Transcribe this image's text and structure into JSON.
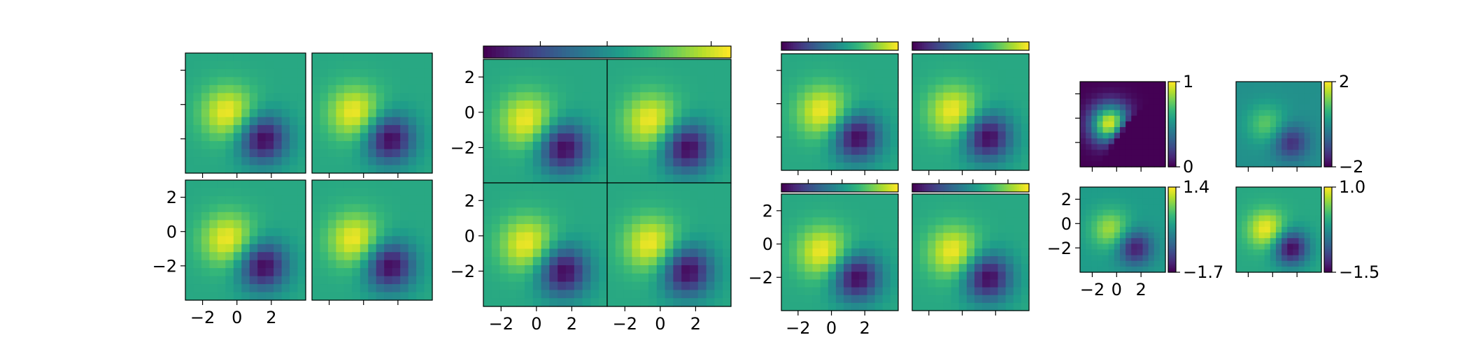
{
  "chart_data": {
    "type": "heatmap",
    "description": "Four figure panels of 2x2 image grids (ImageGrid-style). Each image is the same field: a positive bump near (-0.5,-0.5) and a negative bump near (1.5,-2), extent [-3,4]x[-4,3].",
    "colormap": "viridis",
    "field": {
      "x_extent": [
        -3,
        4
      ],
      "y_extent": [
        -4,
        3
      ],
      "bumps": [
        {
          "cx": -0.5,
          "cy": -0.5,
          "sigma": 1.1,
          "amp": 1.0
        },
        {
          "cx": 1.5,
          "cy": -2.0,
          "sigma": 1.0,
          "amp": -1.5
        }
      ]
    },
    "panels": [
      {
        "id": "grid-1",
        "colorbar": "none",
        "x_ticks": [
          "−2",
          "0",
          "2"
        ],
        "y_ticks": [
          "2",
          "0",
          "−2"
        ],
        "images": [
          {
            "clim": [
              -1.5,
              1.0
            ]
          },
          {
            "clim": [
              -1.5,
              1.0
            ]
          },
          {
            "clim": [
              -1.5,
              1.0
            ]
          },
          {
            "clim": [
              -1.5,
              1.0
            ]
          }
        ]
      },
      {
        "id": "grid-2",
        "colorbar": "single-top",
        "x_ticks": [
          "−2",
          "0",
          "2"
        ],
        "y_ticks": [
          "2",
          "0",
          "−2"
        ],
        "images": [
          {
            "clim": [
              -1.5,
              1.0
            ]
          },
          {
            "clim": [
              -1.5,
              1.0
            ]
          },
          {
            "clim": [
              -1.5,
              1.0
            ]
          },
          {
            "clim": [
              -1.5,
              1.0
            ]
          }
        ]
      },
      {
        "id": "grid-3",
        "colorbar": "each-top",
        "x_ticks": [
          "−2",
          "0",
          "2"
        ],
        "y_ticks": [
          "2",
          "0",
          "−2"
        ],
        "images": [
          {
            "clim": [
              -1.5,
              1.0
            ]
          },
          {
            "clim": [
              -1.5,
              1.0
            ]
          },
          {
            "clim": [
              -1.5,
              1.0
            ]
          },
          {
            "clim": [
              -1.5,
              1.0
            ]
          }
        ]
      },
      {
        "id": "grid-4",
        "colorbar": "each-right",
        "x_ticks": [
          "−2",
          "0",
          "2"
        ],
        "y_ticks": [
          "2",
          "0",
          "−2"
        ],
        "images": [
          {
            "clim": [
              0,
              1
            ],
            "cbar_labels": [
              "1",
              "0"
            ]
          },
          {
            "clim": [
              -2,
              2
            ],
            "cbar_labels": [
              "2",
              "−2"
            ]
          },
          {
            "clim": [
              -1.7,
              1.4
            ],
            "cbar_labels": [
              "1.4",
              "−1.7"
            ]
          },
          {
            "clim": [
              -1.5,
              1.0
            ],
            "cbar_labels": [
              "1.0",
              "−1.5"
            ]
          }
        ]
      }
    ]
  }
}
